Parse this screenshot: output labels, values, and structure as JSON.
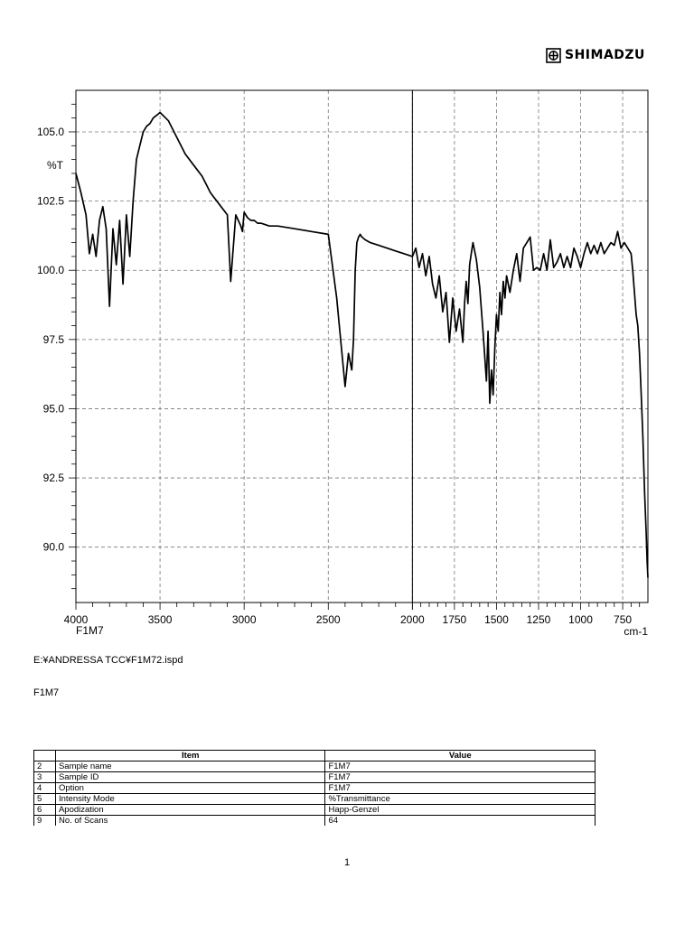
{
  "brand": {
    "name": "SHIMADZU",
    "logo_icon": "shimadzu-logo-icon"
  },
  "chart_data": {
    "type": "line",
    "title": "",
    "ylabel": "%T",
    "xlabel": "cm-1",
    "series_label": "F1M7",
    "xlim": [
      4000,
      600
    ],
    "ylim": [
      88,
      106.5
    ],
    "x_ticks": [
      4000,
      3500,
      3000,
      2500,
      2000,
      1750,
      1500,
      1250,
      1000,
      750
    ],
    "x_tick_labels": [
      "4000",
      "3500",
      "3000",
      "2500",
      "2000",
      "1750",
      "1500",
      "1250",
      "1000",
      "750"
    ],
    "y_ticks": [
      90.0,
      92.5,
      95.0,
      97.5,
      100.0,
      102.5,
      105.0
    ],
    "y_tick_labels": [
      "90.0",
      "92.5",
      "95.0",
      "97.5",
      "100.0",
      "102.5",
      "105.0"
    ],
    "grid": true,
    "series": [
      {
        "x": [
          4000,
          3970,
          3940,
          3920,
          3900,
          3880,
          3860,
          3840,
          3820,
          3800,
          3780,
          3760,
          3740,
          3720,
          3700,
          3680,
          3660,
          3640,
          3620,
          3600,
          3580,
          3560,
          3540,
          3520,
          3500,
          3450,
          3400,
          3350,
          3300,
          3250,
          3200,
          3150,
          3100,
          3080,
          3050,
          3020,
          3010,
          3000,
          2980,
          2960,
          2940,
          2920,
          2900,
          2850,
          2800,
          2700,
          2600,
          2500,
          2450,
          2400,
          2380,
          2360,
          2350,
          2340,
          2330,
          2320,
          2310,
          2300,
          2280,
          2250,
          2200,
          2150,
          2100,
          2050,
          2000,
          1980,
          1960,
          1940,
          1920,
          1900,
          1880,
          1860,
          1840,
          1820,
          1800,
          1780,
          1760,
          1740,
          1720,
          1700,
          1690,
          1680,
          1670,
          1660,
          1650,
          1640,
          1620,
          1600,
          1580,
          1560,
          1550,
          1540,
          1530,
          1520,
          1510,
          1500,
          1490,
          1480,
          1470,
          1460,
          1450,
          1440,
          1420,
          1400,
          1380,
          1360,
          1340,
          1320,
          1300,
          1280,
          1260,
          1240,
          1220,
          1200,
          1180,
          1160,
          1140,
          1120,
          1100,
          1080,
          1060,
          1040,
          1020,
          1000,
          980,
          960,
          940,
          920,
          900,
          880,
          860,
          840,
          820,
          800,
          780,
          760,
          740,
          720,
          700,
          690,
          680,
          670,
          660,
          650,
          640,
          630,
          620,
          610,
          605,
          600
        ],
        "y": [
          103.5,
          102.8,
          102.0,
          100.6,
          101.3,
          100.5,
          101.8,
          102.3,
          101.5,
          98.7,
          101.5,
          100.2,
          101.8,
          99.5,
          102.0,
          100.5,
          102.5,
          104.0,
          104.5,
          105.0,
          105.2,
          105.3,
          105.5,
          105.6,
          105.7,
          105.4,
          104.8,
          104.2,
          103.8,
          103.4,
          102.8,
          102.4,
          102.0,
          99.6,
          102.0,
          101.6,
          101.4,
          102.1,
          101.9,
          101.8,
          101.8,
          101.7,
          101.7,
          101.6,
          101.6,
          101.5,
          101.4,
          101.3,
          99.0,
          95.8,
          97.0,
          96.4,
          97.5,
          100.0,
          101.0,
          101.2,
          101.3,
          101.2,
          101.1,
          101.0,
          100.9,
          100.8,
          100.7,
          100.6,
          100.5,
          100.8,
          100.1,
          100.6,
          99.8,
          100.5,
          99.5,
          99.0,
          99.8,
          98.5,
          99.2,
          97.4,
          99.0,
          97.8,
          98.6,
          97.4,
          98.8,
          99.6,
          98.8,
          100.2,
          100.6,
          101.0,
          100.4,
          99.4,
          97.8,
          96.0,
          97.8,
          95.2,
          96.4,
          95.5,
          97.2,
          98.4,
          97.8,
          99.2,
          98.4,
          99.6,
          99.0,
          99.8,
          99.2,
          100.0,
          100.6,
          99.6,
          100.8,
          101.0,
          101.2,
          100.0,
          100.1,
          100.0,
          100.6,
          100.0,
          101.1,
          100.1,
          100.3,
          100.6,
          100.1,
          100.5,
          100.1,
          100.8,
          100.5,
          100.1,
          100.6,
          101.0,
          100.6,
          100.9,
          100.6,
          101.0,
          100.6,
          100.8,
          101.0,
          100.9,
          101.4,
          100.8,
          101.0,
          100.8,
          100.6,
          100.0,
          99.2,
          98.4,
          98.0,
          97.0,
          95.5,
          94.0,
          92.0,
          90.5,
          89.5,
          88.9
        ]
      }
    ]
  },
  "file_path": "E:¥ANDRESSA TCC¥F1M72.ispd",
  "sample_caption": "F1M7",
  "table": {
    "headers": [
      "",
      "Item",
      "Value"
    ],
    "rows": [
      [
        "2",
        "Sample name",
        "F1M7"
      ],
      [
        "3",
        "Sample ID",
        "F1M7"
      ],
      [
        "4",
        "Option",
        "F1M7"
      ],
      [
        "5",
        "Intensity Mode",
        "%Transmittance"
      ],
      [
        "6",
        "Apodization",
        "Happ-Genzel"
      ],
      [
        "9",
        "No. of Scans",
        "64"
      ]
    ]
  },
  "page_number": "1"
}
